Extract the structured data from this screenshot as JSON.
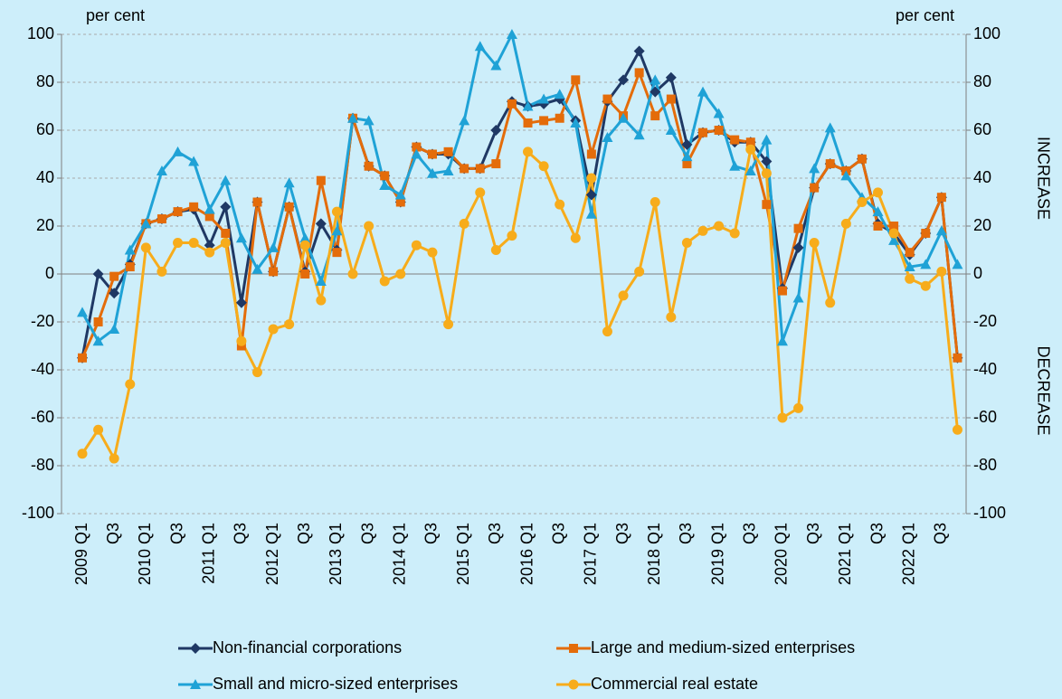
{
  "chart_data": {
    "type": "line",
    "y_axis_label": "per cent",
    "y2_axis_label": "per cent",
    "annotations": [
      "INCREASE",
      "DECREASE"
    ],
    "categories": [
      "2009 Q1",
      null,
      "Q3",
      null,
      "2010 Q1",
      null,
      "Q3",
      null,
      "2011 Q1",
      null,
      "Q3",
      null,
      "2012 Q1",
      null,
      "Q3",
      null,
      "2013 Q1",
      null,
      "Q3",
      null,
      "2014 Q1",
      null,
      "Q3",
      null,
      "2015 Q1",
      null,
      "Q3",
      null,
      "2016 Q1",
      null,
      "Q3",
      null,
      "2017 Q1",
      null,
      "Q3",
      null,
      "2018 Q1",
      null,
      "Q3",
      null,
      "2019 Q1",
      null,
      "Q3",
      null,
      "2020 Q1",
      null,
      "Q3",
      null,
      "2021 Q1",
      null,
      "Q3",
      null,
      "2022 Q1",
      null,
      "Q3",
      null
    ],
    "series": [
      {
        "name": "Non-financial corporations",
        "color": "#1f3864",
        "marker": "diamond",
        "values": [
          -35,
          0,
          -8,
          4,
          21,
          23,
          26,
          27,
          12,
          28,
          -12,
          30,
          1,
          28,
          1,
          21,
          10,
          65,
          45,
          41,
          30,
          53,
          50,
          50,
          44,
          44,
          60,
          72,
          70,
          71,
          73,
          64,
          33,
          72,
          81,
          93,
          76,
          82,
          54,
          59,
          60,
          55,
          55,
          47,
          -6,
          11,
          36,
          46,
          43,
          48,
          21,
          17,
          8,
          17,
          32,
          -35
        ]
      },
      {
        "name": "Large and medium-sized enterprises",
        "color": "#e46c0a",
        "marker": "square",
        "values": [
          -35,
          -20,
          -1,
          3,
          21,
          23,
          26,
          28,
          24,
          17,
          -30,
          30,
          1,
          28,
          0,
          39,
          9,
          65,
          45,
          41,
          30,
          53,
          50,
          51,
          44,
          44,
          46,
          71,
          63,
          64,
          65,
          81,
          50,
          73,
          66,
          84,
          66,
          73,
          46,
          59,
          60,
          56,
          55,
          29,
          -7,
          19,
          36,
          46,
          43,
          48,
          20,
          20,
          9,
          17,
          32,
          -35
        ]
      },
      {
        "name": "Small and micro-sized enterprises",
        "color": "#1fa2d6",
        "marker": "triangle",
        "values": [
          -16,
          -28,
          -23,
          10,
          21,
          43,
          51,
          47,
          27,
          39,
          15,
          2,
          11,
          38,
          15,
          -3,
          18,
          65,
          64,
          37,
          33,
          50,
          42,
          43,
          64,
          95,
          87,
          100,
          70,
          73,
          75,
          63,
          25,
          57,
          65,
          58,
          81,
          60,
          49,
          76,
          67,
          45,
          43,
          56,
          -28,
          -10,
          44,
          61,
          41,
          32,
          26,
          14,
          3,
          4,
          18,
          4
        ]
      },
      {
        "name": "Commercial real estate",
        "color": "#f7ac1b",
        "marker": "circle",
        "values": [
          -75,
          -65,
          -77,
          -46,
          11,
          1,
          13,
          13,
          9,
          13,
          -28,
          -41,
          -23,
          -21,
          12,
          -11,
          26,
          0,
          20,
          -3,
          0,
          12,
          9,
          -21,
          21,
          34,
          10,
          16,
          51,
          45,
          29,
          15,
          40,
          -24,
          -9,
          1,
          30,
          -18,
          13,
          18,
          20,
          17,
          52,
          42,
          -60,
          -56,
          13,
          -12,
          21,
          30,
          34,
          17,
          -2,
          -5,
          1,
          -65
        ]
      }
    ],
    "ylim": [
      -100,
      100
    ],
    "yticks": [
      -100,
      -80,
      -60,
      -40,
      -20,
      0,
      20,
      40,
      60,
      80,
      100
    ],
    "y2lim": [
      -100,
      100
    ],
    "y2ticks": [
      -100,
      -80,
      -60,
      -40,
      -20,
      0,
      20,
      40,
      60,
      80,
      100
    ],
    "grid": true
  }
}
